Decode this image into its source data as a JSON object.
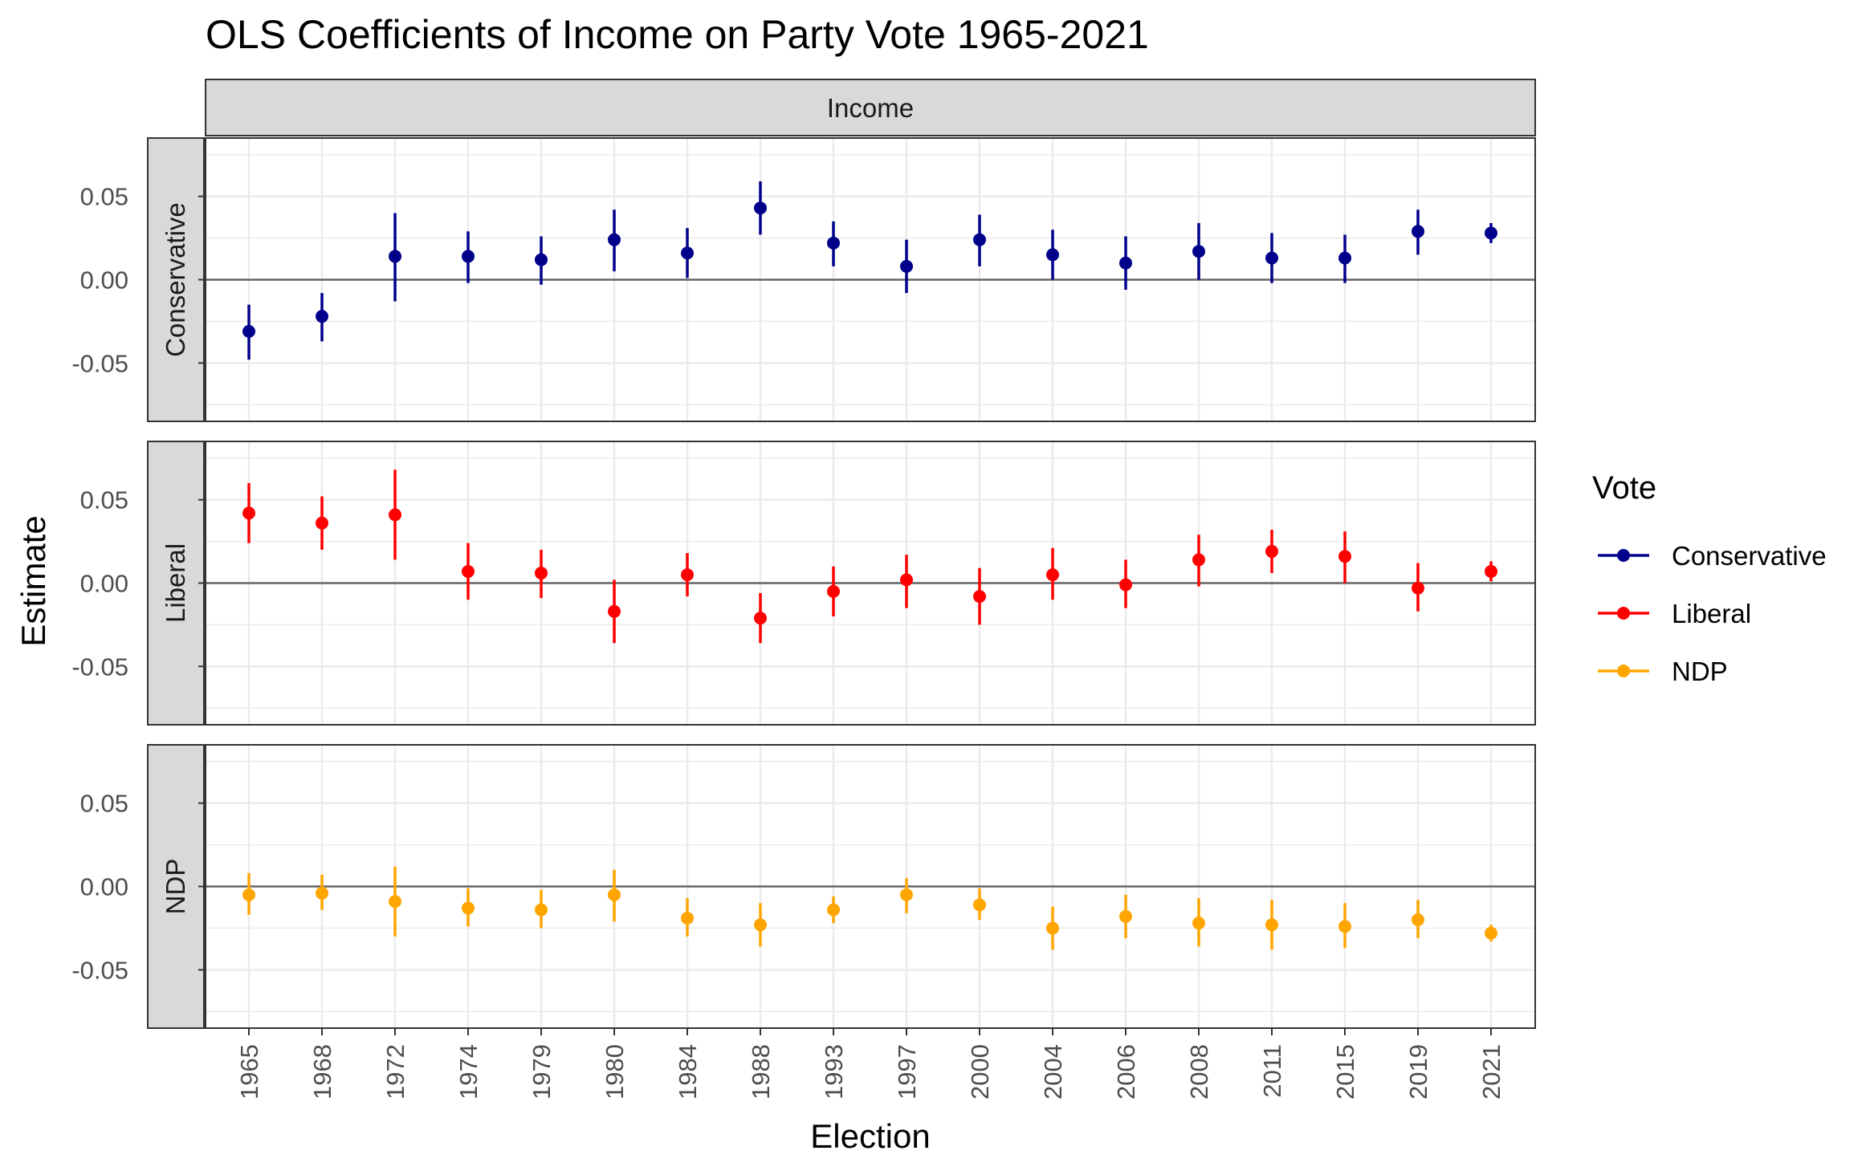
{
  "chart_data": {
    "type": "scatter",
    "title": "OLS Coefficients of Income on Party Vote 1965-2021",
    "strip_top": "Income",
    "xlabel": "Election",
    "ylabel": "Estimate",
    "categories": [
      "1965",
      "1968",
      "1972",
      "1974",
      "1979",
      "1980",
      "1984",
      "1988",
      "1993",
      "1997",
      "2000",
      "2004",
      "2006",
      "2008",
      "2011",
      "2015",
      "2019",
      "2021"
    ],
    "ylim": [
      -0.085,
      0.085
    ],
    "yticks": [
      -0.05,
      0.0,
      0.05
    ],
    "ytick_labels": [
      "-0.05",
      "0.00",
      "0.05"
    ],
    "grid": true,
    "reference_line": 0,
    "legend": {
      "title": "Vote",
      "position": "right"
    },
    "series": [
      {
        "name": "Conservative",
        "color": "#00008B",
        "values": [
          -0.031,
          -0.022,
          0.014,
          0.014,
          0.012,
          0.024,
          0.016,
          0.043,
          0.022,
          0.008,
          0.024,
          0.015,
          0.01,
          0.017,
          0.013,
          0.013,
          0.029,
          0.028
        ],
        "lower": [
          -0.048,
          -0.037,
          -0.013,
          -0.002,
          -0.003,
          0.005,
          0.001,
          0.027,
          0.008,
          -0.008,
          0.008,
          0.0,
          -0.006,
          0.0,
          -0.002,
          -0.002,
          0.015,
          0.022
        ],
        "upper": [
          -0.015,
          -0.008,
          0.04,
          0.029,
          0.026,
          0.042,
          0.031,
          0.059,
          0.035,
          0.024,
          0.039,
          0.03,
          0.026,
          0.034,
          0.028,
          0.027,
          0.042,
          0.034
        ]
      },
      {
        "name": "Liberal",
        "color": "#FF0000",
        "values": [
          0.042,
          0.036,
          0.041,
          0.007,
          0.006,
          -0.017,
          0.005,
          -0.021,
          -0.005,
          0.002,
          -0.008,
          0.005,
          -0.001,
          0.014,
          0.019,
          0.016,
          -0.003,
          0.007
        ],
        "lower": [
          0.024,
          0.02,
          0.014,
          -0.01,
          -0.009,
          -0.036,
          -0.008,
          -0.036,
          -0.02,
          -0.015,
          -0.025,
          -0.01,
          -0.015,
          -0.002,
          0.006,
          0.0,
          -0.017,
          0.001
        ],
        "upper": [
          0.06,
          0.052,
          0.068,
          0.024,
          0.02,
          0.002,
          0.018,
          -0.006,
          0.01,
          0.017,
          0.009,
          0.021,
          0.014,
          0.029,
          0.032,
          0.031,
          0.012,
          0.013
        ]
      },
      {
        "name": "NDP",
        "color": "#FFA500",
        "values": [
          -0.005,
          -0.004,
          -0.009,
          -0.013,
          -0.014,
          -0.005,
          -0.019,
          -0.023,
          -0.014,
          -0.005,
          -0.011,
          -0.025,
          -0.018,
          -0.022,
          -0.023,
          -0.024,
          -0.02,
          -0.028
        ],
        "lower": [
          -0.017,
          -0.014,
          -0.03,
          -0.024,
          -0.025,
          -0.021,
          -0.03,
          -0.036,
          -0.022,
          -0.016,
          -0.02,
          -0.038,
          -0.031,
          -0.036,
          -0.038,
          -0.037,
          -0.031,
          -0.033
        ],
        "upper": [
          0.008,
          0.007,
          0.012,
          -0.001,
          -0.002,
          0.01,
          -0.007,
          -0.01,
          -0.006,
          0.005,
          -0.001,
          -0.012,
          -0.005,
          -0.007,
          -0.008,
          -0.01,
          -0.008,
          -0.023
        ]
      }
    ]
  }
}
